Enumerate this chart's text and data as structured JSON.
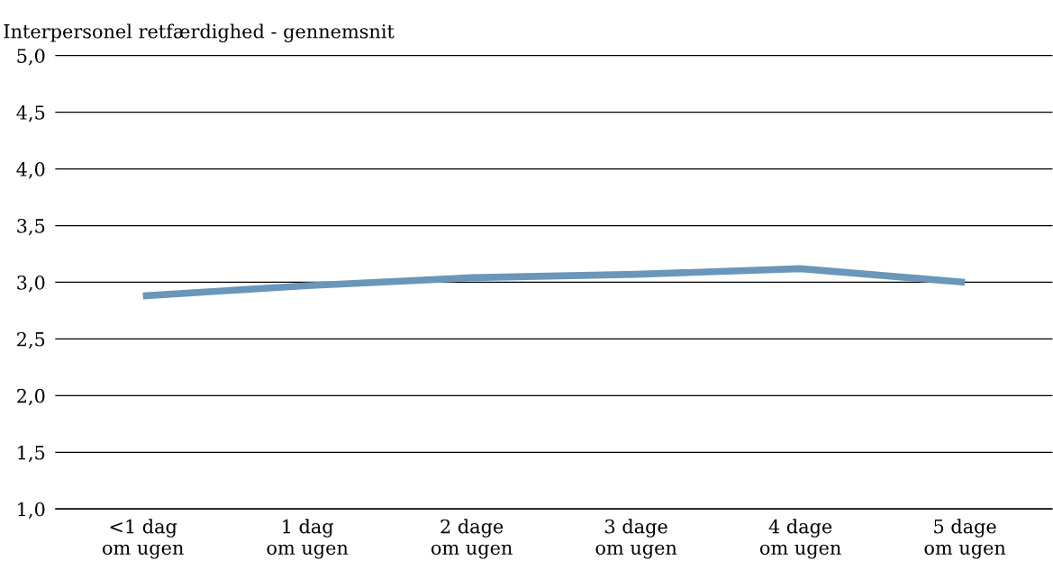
{
  "chart_data": {
    "type": "line",
    "title": "Interpersonel retfærdighed - gennemsnit",
    "categories": [
      "<1 dag\nom ugen",
      "1 dag\nom ugen",
      "2 dage\nom ugen",
      "3 dage\nom ugen",
      "4 dage\nom ugen",
      "5 dage\nom ugen"
    ],
    "series": [
      {
        "color": "#6a96b9",
        "values": [
          2.88,
          2.97,
          3.04,
          3.07,
          3.12,
          3.0
        ]
      }
    ],
    "ylim": [
      1,
      5
    ],
    "yticks": [
      {
        "value": 1,
        "label": "1,0"
      },
      {
        "value": 1.5,
        "label": "1,5"
      },
      {
        "value": 2,
        "label": "2,0"
      },
      {
        "value": 2.5,
        "label": "2,5"
      },
      {
        "value": 3,
        "label": "3,0"
      },
      {
        "value": 3.5,
        "label": "3,5"
      },
      {
        "value": 4,
        "label": "4,0"
      },
      {
        "value": 4.5,
        "label": "4,5"
      },
      {
        "value": 5,
        "label": "5,0"
      }
    ],
    "grid": "y",
    "marker": "none",
    "line_style": "solid"
  }
}
